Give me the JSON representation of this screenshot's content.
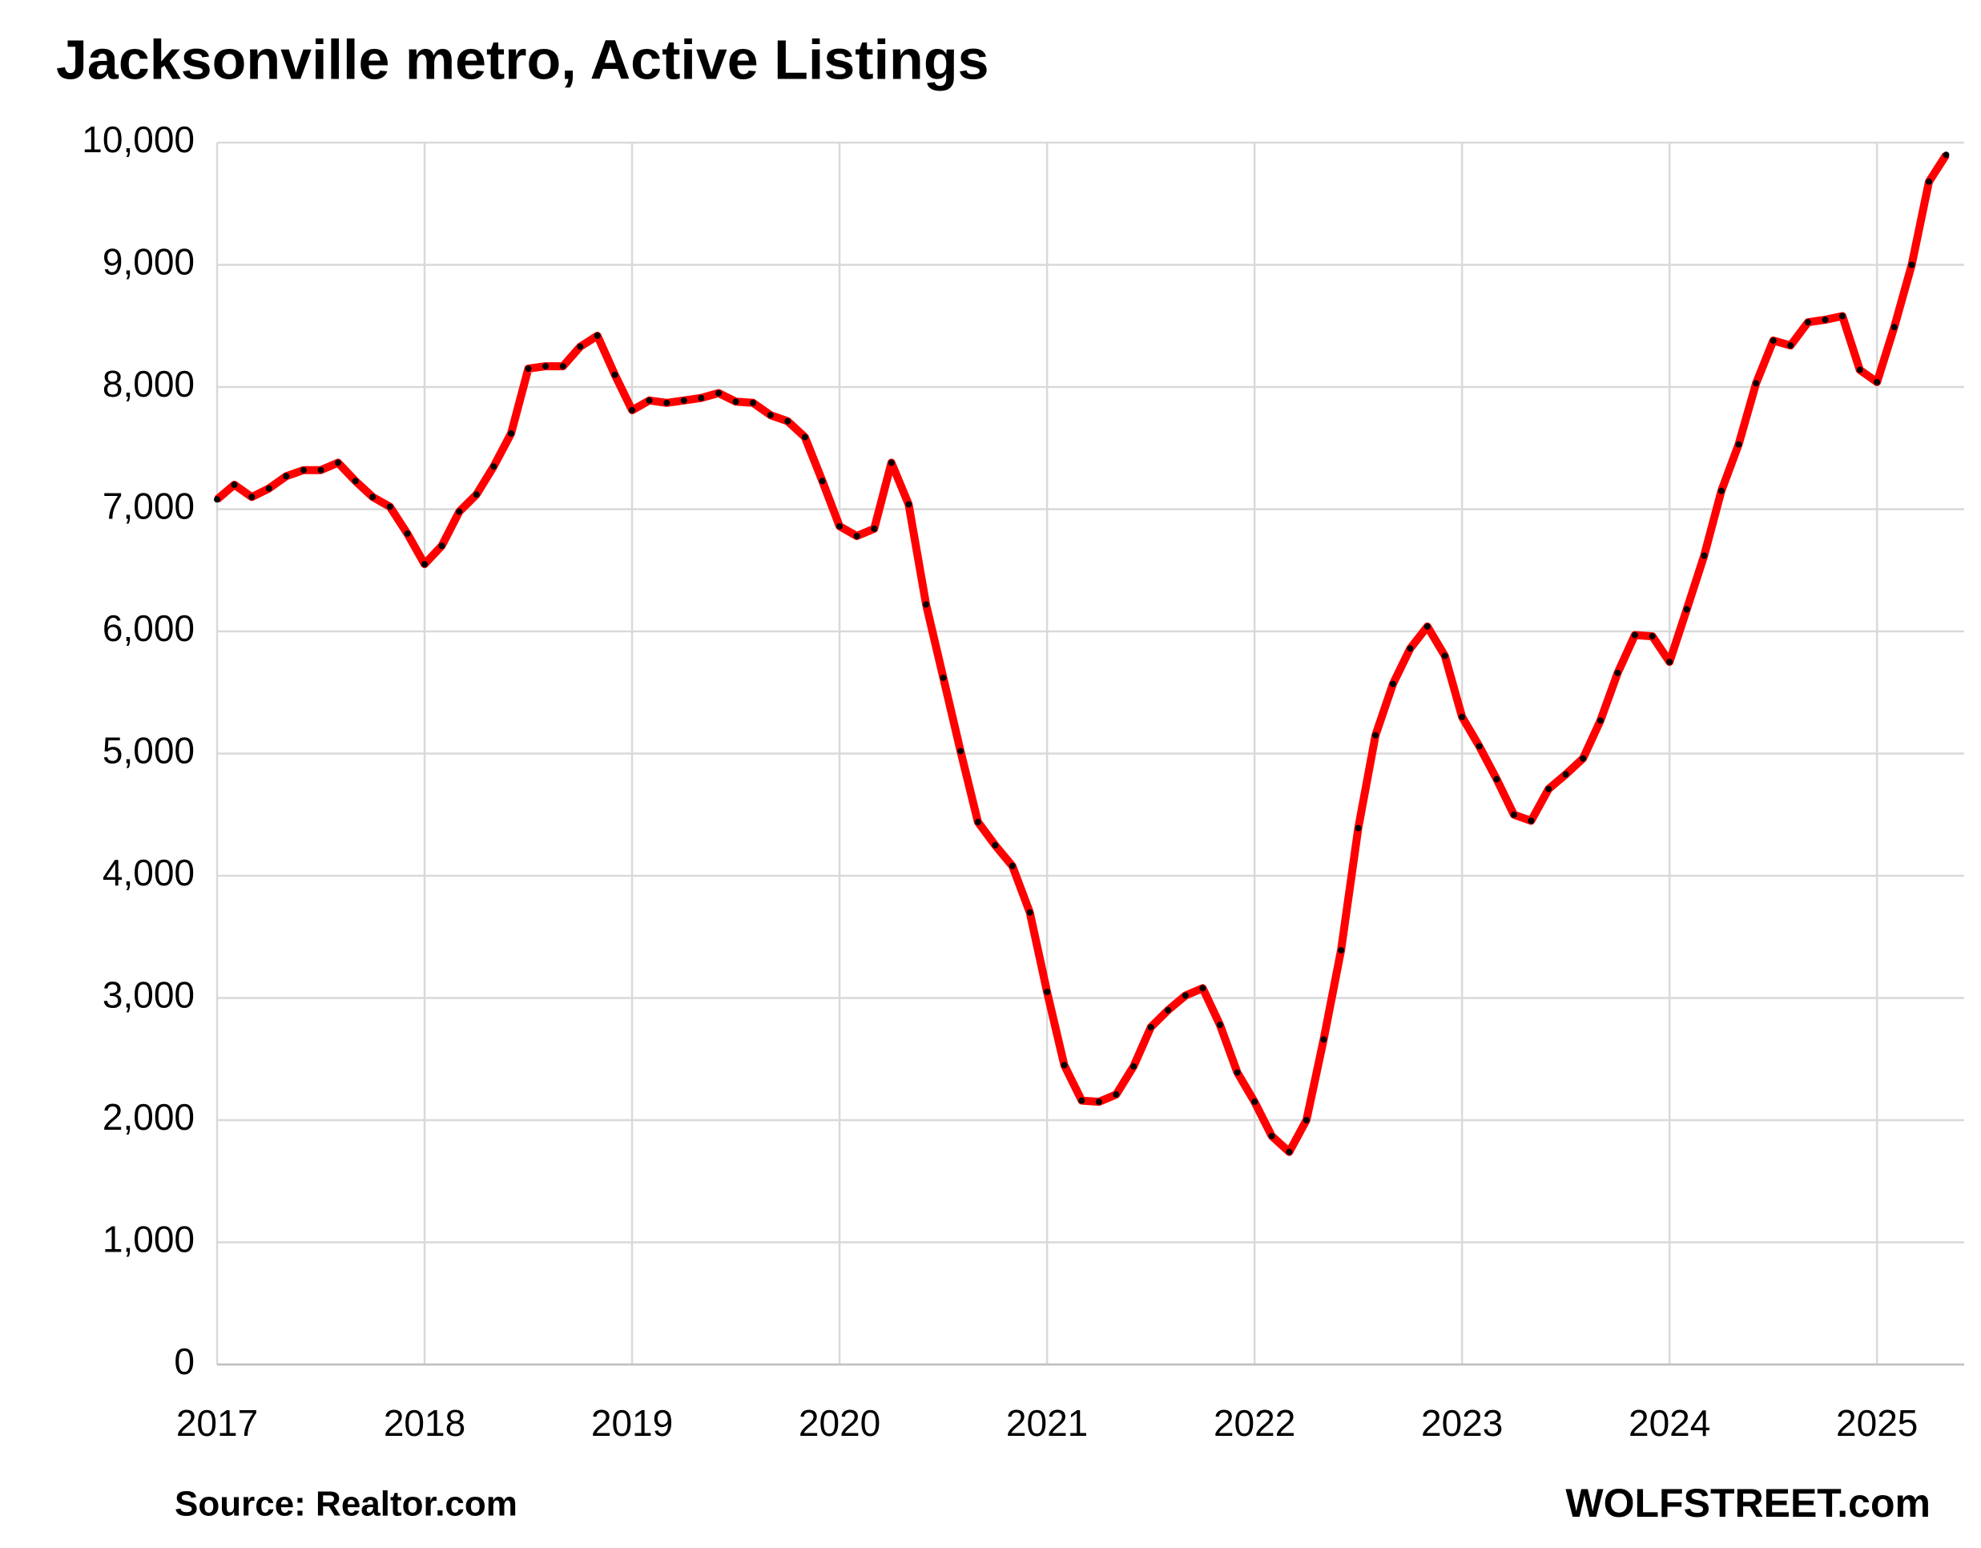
{
  "chart_data": {
    "type": "line",
    "title": "Jacksonville metro, Active Listings",
    "source": "Source: Realtor.com",
    "brand": "WOLFSTREET.com",
    "x": [
      2017.0,
      2017.083,
      2017.167,
      2017.25,
      2017.333,
      2017.417,
      2017.5,
      2017.583,
      2017.667,
      2017.75,
      2017.833,
      2017.917,
      2018.0,
      2018.083,
      2018.167,
      2018.25,
      2018.333,
      2018.417,
      2018.5,
      2018.583,
      2018.667,
      2018.75,
      2018.833,
      2018.917,
      2019.0,
      2019.083,
      2019.167,
      2019.25,
      2019.333,
      2019.417,
      2019.5,
      2019.583,
      2019.667,
      2019.75,
      2019.833,
      2019.917,
      2020.0,
      2020.083,
      2020.167,
      2020.25,
      2020.333,
      2020.417,
      2020.5,
      2020.583,
      2020.667,
      2020.75,
      2020.833,
      2020.917,
      2021.0,
      2021.083,
      2021.167,
      2021.25,
      2021.333,
      2021.417,
      2021.5,
      2021.583,
      2021.667,
      2021.75,
      2021.833,
      2021.917,
      2022.0,
      2022.083,
      2022.167,
      2022.25,
      2022.333,
      2022.417,
      2022.5,
      2022.583,
      2022.667,
      2022.75,
      2022.833,
      2022.917,
      2023.0,
      2023.083,
      2023.167,
      2023.25,
      2023.333,
      2023.417,
      2023.5,
      2023.583,
      2023.667,
      2023.75,
      2023.833,
      2023.917,
      2024.0,
      2024.083,
      2024.167,
      2024.25,
      2024.333,
      2024.417,
      2024.5,
      2024.583,
      2024.667,
      2024.75,
      2024.833,
      2024.917,
      2025.0,
      2025.083,
      2025.167,
      2025.25,
      2025.333
    ],
    "series": [
      {
        "name": "Active Listings",
        "color": "#ff0000",
        "marker_color": "#000000",
        "values": [
          7080,
          7200,
          7100,
          7170,
          7270,
          7320,
          7320,
          7380,
          7230,
          7100,
          7020,
          6800,
          6550,
          6700,
          6980,
          7120,
          7350,
          7620,
          8150,
          8170,
          8170,
          8330,
          8420,
          8100,
          7810,
          7890,
          7870,
          7890,
          7910,
          7950,
          7880,
          7870,
          7770,
          7720,
          7590,
          7230,
          6860,
          6780,
          6840,
          7380,
          7040,
          6220,
          5620,
          5020,
          4440,
          4250,
          4080,
          3700,
          3050,
          2450,
          2160,
          2150,
          2210,
          2440,
          2760,
          2900,
          3020,
          3080,
          2780,
          2390,
          2150,
          1870,
          1740,
          2000,
          2660,
          3390,
          4390,
          5150,
          5570,
          5860,
          6040,
          5800,
          5300,
          5060,
          4790,
          4500,
          4450,
          4710,
          4830,
          4960,
          5270,
          5660,
          5970,
          5960,
          5750,
          6180,
          6620,
          7150,
          7530,
          8030,
          8380,
          8340,
          8530,
          8550,
          8580,
          8140,
          8040,
          8490,
          9000,
          9680,
          9900
        ]
      }
    ],
    "xlim": [
      2017,
      2025.42
    ],
    "xticks": [
      2017,
      2018,
      2019,
      2020,
      2021,
      2022,
      2023,
      2024,
      2025
    ],
    "ylim": [
      0,
      10000
    ],
    "yticks": [
      0,
      {
        "value": 1000,
        "label": "1,000"
      },
      {
        "value": 2000,
        "label": "2,000"
      },
      {
        "value": 3000,
        "label": "3,000"
      },
      {
        "value": 4000,
        "label": "4,000"
      },
      {
        "value": 5000,
        "label": "5,000"
      },
      {
        "value": 6000,
        "label": "6,000"
      },
      {
        "value": 7000,
        "label": "7,000"
      },
      {
        "value": 8000,
        "label": "8,000"
      },
      {
        "value": 9000,
        "label": "9,000"
      },
      {
        "value": 10000,
        "label": "10,000"
      }
    ],
    "grid": true
  }
}
